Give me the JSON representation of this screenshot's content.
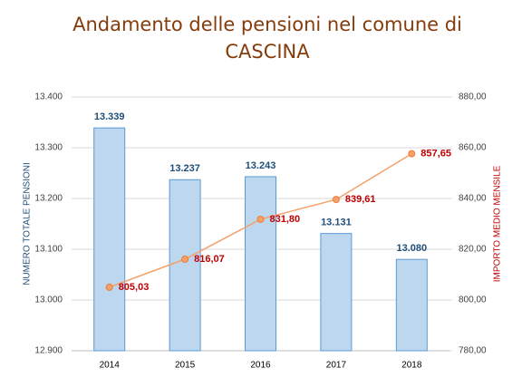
{
  "chart_data": {
    "type": "bar-line",
    "title": [
      "Andamento delle pensioni nel comune di",
      "CASCINA"
    ],
    "y_label": "NUMERO TOTALE PENSIONI",
    "y2_label": "IMPORTO MEDIO MENSILE",
    "categories": [
      "2014",
      "2015",
      "2016",
      "2017",
      "2018"
    ],
    "series": [
      {
        "name": "Numero totale pensioni",
        "type": "bar",
        "color": "#bdd7ee",
        "values": [
          13339,
          13237,
          13243,
          13131,
          13080
        ],
        "value_labels": [
          "13.339",
          "13.237",
          "13.243",
          "13.131",
          "13.080"
        ]
      },
      {
        "name": "Importo medio mensile",
        "type": "line",
        "axis": "y2",
        "color": "#f4a16c",
        "values": [
          805.03,
          816.07,
          831.8,
          839.61,
          857.65
        ],
        "value_labels": [
          "805,03",
          "816,07",
          "831,80",
          "839,61",
          "857,65"
        ]
      }
    ],
    "ylim": [
      12900,
      13400
    ],
    "yticks": [
      {
        "value": 12900,
        "label": "12.900"
      },
      {
        "value": 13000,
        "label": "13.000"
      },
      {
        "value": 13100,
        "label": "13.100"
      },
      {
        "value": 13200,
        "label": "13.200"
      },
      {
        "value": 13300,
        "label": "13.300"
      },
      {
        "value": 13400,
        "label": "13.400"
      }
    ],
    "y2lim": [
      780,
      880
    ],
    "y2ticks": [
      {
        "value": 780,
        "label": "780,00"
      },
      {
        "value": 800,
        "label": "800,00"
      },
      {
        "value": 820,
        "label": "820,00"
      },
      {
        "value": 840,
        "label": "840,00"
      },
      {
        "value": 860,
        "label": "860,00"
      },
      {
        "value": 880,
        "label": "880,00"
      }
    ],
    "grid": true
  }
}
